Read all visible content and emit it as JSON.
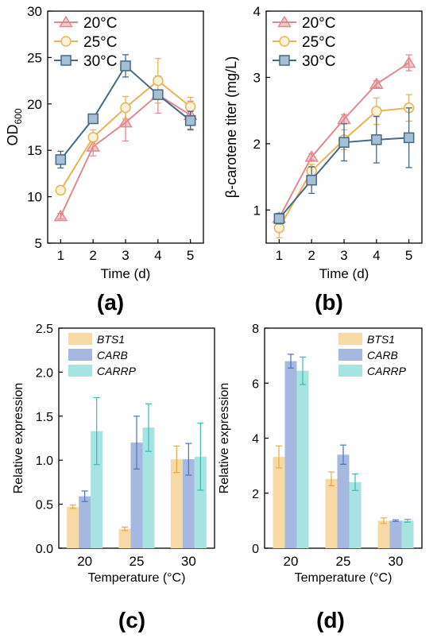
{
  "panels": {
    "a": "(a)",
    "b": "(b)",
    "c": "(c)",
    "d": "(d)"
  },
  "colors": {
    "20C": "#e08a90",
    "25C": "#e8b455",
    "30C": "#466a84",
    "BTS1": "#f7d9a6",
    "CARB": "#a4b8e0",
    "CARRP": "#a6e3e1"
  },
  "chart_data": [
    {
      "id": "a",
      "type": "line",
      "xlabel": "Time (d)",
      "ylabel": "OD",
      "ylabel_sub": "600",
      "x": [
        1,
        2,
        3,
        4,
        5
      ],
      "xlim": [
        0.6,
        5.4
      ],
      "ylim": [
        5,
        30
      ],
      "yticks": [
        5,
        10,
        15,
        20,
        25,
        30
      ],
      "legend": "top-left",
      "series": [
        {
          "name": "20°C",
          "marker": "triangle",
          "color": "#e08a90",
          "values": [
            7.9,
            15.4,
            18.0,
            21.0,
            18.8
          ],
          "err": [
            0.3,
            1.0,
            2.0,
            2.0,
            1.5
          ]
        },
        {
          "name": "25°C",
          "marker": "circle",
          "color": "#e8b455",
          "values": [
            10.7,
            16.4,
            19.6,
            22.5,
            19.7
          ],
          "err": [
            0.4,
            0.8,
            1.2,
            2.4,
            1.0
          ]
        },
        {
          "name": "30°C",
          "marker": "square",
          "color": "#466a84",
          "values": [
            14.0,
            18.4,
            24.1,
            21.0,
            18.2
          ],
          "err": [
            0.9,
            0.3,
            1.2,
            0.5,
            1.0
          ]
        }
      ]
    },
    {
      "id": "b",
      "type": "line",
      "xlabel": "Time (d)",
      "ylabel": "β-carotene titer (mg/L)",
      "x": [
        1,
        2,
        3,
        4,
        5
      ],
      "xlim": [
        0.6,
        5.4
      ],
      "ylim": [
        0.5,
        4
      ],
      "yticks": [
        1,
        2,
        3,
        4
      ],
      "legend": "top-left",
      "series": [
        {
          "name": "20°C",
          "marker": "triangle",
          "color": "#e08a90",
          "values": [
            0.88,
            1.8,
            2.37,
            2.9,
            3.22
          ],
          "err": [
            0.05,
            0.05,
            0.07,
            0.05,
            0.12
          ]
        },
        {
          "name": "25°C",
          "marker": "circle",
          "color": "#e8b455",
          "values": [
            0.73,
            1.59,
            2.06,
            2.49,
            2.54
          ],
          "err": [
            0.15,
            0.1,
            0.15,
            0.2,
            0.2
          ]
        },
        {
          "name": "30°C",
          "marker": "square",
          "color": "#466a84",
          "values": [
            0.87,
            1.45,
            2.02,
            2.06,
            2.09
          ],
          "err": [
            0.08,
            0.2,
            0.28,
            0.35,
            0.45
          ]
        }
      ]
    },
    {
      "id": "c",
      "type": "bar",
      "xlabel": "Temperature (°C)",
      "ylabel": "Relative expression",
      "categories": [
        "20",
        "25",
        "30"
      ],
      "ylim": [
        0,
        2.5
      ],
      "yticks": [
        "0.0",
        "0.5",
        "1.0",
        "1.5",
        "2.0",
        "2.5"
      ],
      "legend": "top-left",
      "series": [
        {
          "name": "BTS1",
          "color": "#f7d9a6",
          "err_color": "#e8a94a",
          "values": [
            0.47,
            0.22,
            1.01
          ],
          "err": [
            0.02,
            0.02,
            0.15
          ]
        },
        {
          "name": "CARB",
          "color": "#a4b8e0",
          "err_color": "#4f72c0",
          "values": [
            0.59,
            1.2,
            1.01
          ],
          "err": [
            0.06,
            0.3,
            0.18
          ]
        },
        {
          "name": "CARRP",
          "color": "#a6e3e1",
          "err_color": "#3fb8b3",
          "values": [
            1.33,
            1.37,
            1.04
          ],
          "err": [
            0.38,
            0.27,
            0.38
          ]
        }
      ]
    },
    {
      "id": "d",
      "type": "bar",
      "xlabel": "Temperature (°C)",
      "ylabel": "Relative expression",
      "categories": [
        "20",
        "25",
        "30"
      ],
      "ylim": [
        0,
        8
      ],
      "yticks": [
        "0",
        "2",
        "4",
        "6",
        "8"
      ],
      "legend": "top-right",
      "series": [
        {
          "name": "BTS1",
          "color": "#f7d9a6",
          "err_color": "#e8a94a",
          "values": [
            3.32,
            2.52,
            1.0
          ],
          "err": [
            0.4,
            0.25,
            0.1
          ]
        },
        {
          "name": "CARB",
          "color": "#a4b8e0",
          "err_color": "#4f72c0",
          "values": [
            6.8,
            3.4,
            1.0
          ],
          "err": [
            0.25,
            0.35,
            0.03
          ]
        },
        {
          "name": "CARRP",
          "color": "#a6e3e1",
          "err_color": "#3fb8b3",
          "values": [
            6.45,
            2.4,
            1.0
          ],
          "err": [
            0.5,
            0.3,
            0.05
          ]
        }
      ]
    }
  ]
}
